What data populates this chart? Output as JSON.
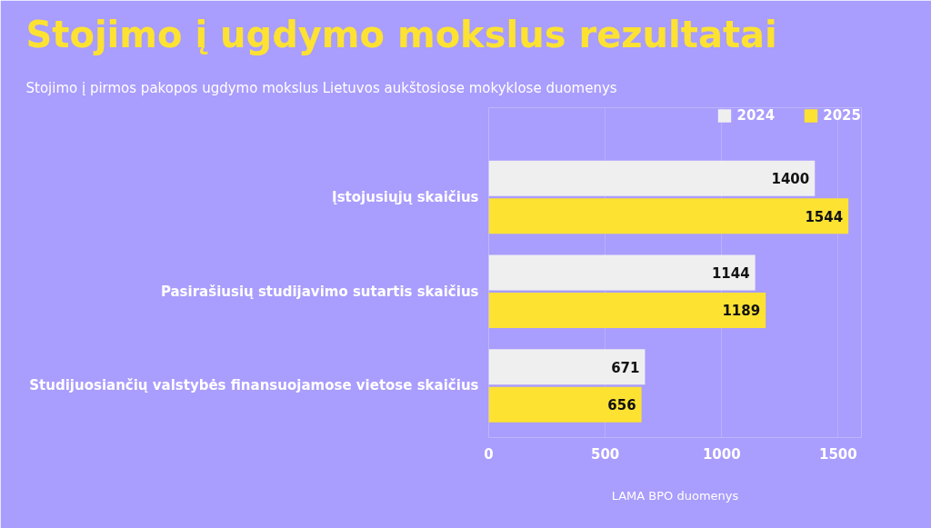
{
  "chart_data": {
    "type": "bar",
    "orientation": "horizontal",
    "title": "Stojimo į ugdymo mokslus rezultatai",
    "subtitle": "Stojimo į pirmos pakopos ugdymo mokslus Lietuvos aukštosiose mokyklose duomenys",
    "categories": [
      "Įstojusiųjų skaičius",
      "Pasirašiusių studijavimo sutartis skaičius",
      "Studijuosiančių valstybės finansuojamose vietose skaičius"
    ],
    "series": [
      {
        "name": "2024",
        "color": "#efefef",
        "values": [
          1400,
          1144,
          671
        ]
      },
      {
        "name": "2025",
        "color": "#fde232",
        "values": [
          1544,
          1189,
          656
        ]
      }
    ],
    "xlim": [
      0,
      1600
    ],
    "xticks": [
      0,
      500,
      1000,
      1500
    ],
    "grid": "x",
    "legend": "top right",
    "data_labels": true,
    "annotations": [
      "LAMA BPO duomenys"
    ]
  }
}
